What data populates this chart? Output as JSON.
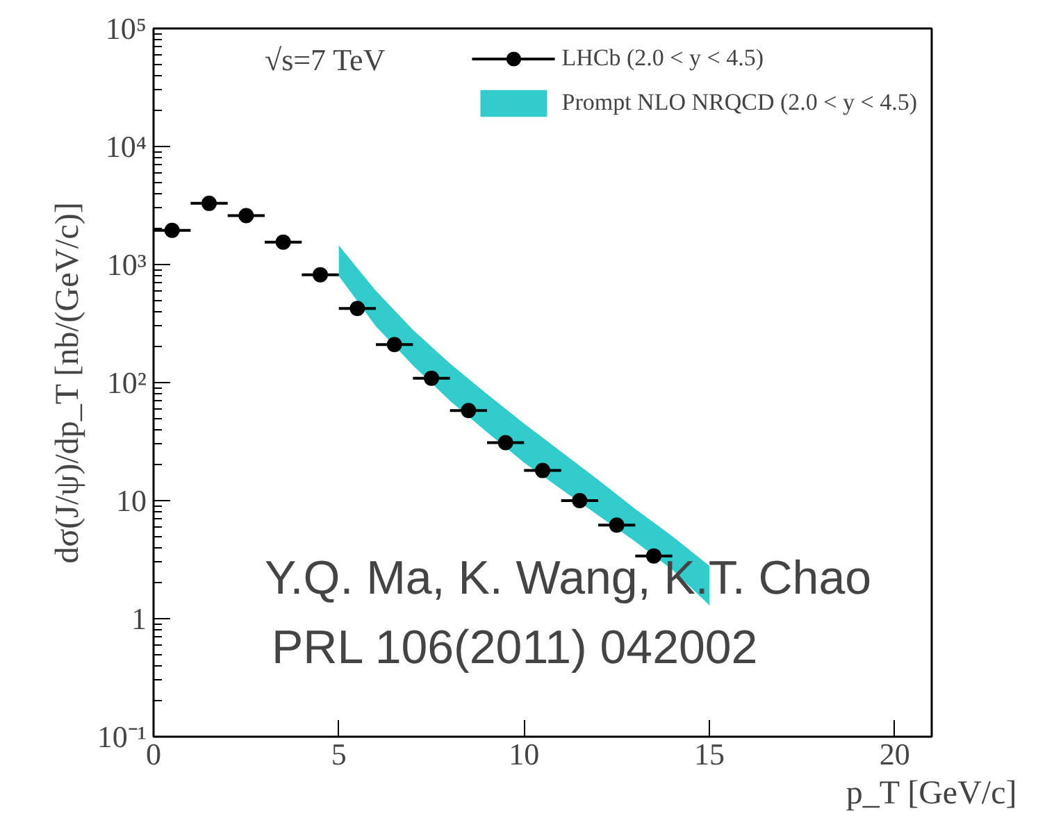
{
  "chart_data": {
    "type": "scatter",
    "xlabel": "p_T [GeV/c]",
    "ylabel": "dσ(J/ψ)/dp_T [nb/(GeV/c)]",
    "log": "y",
    "xlim": [
      0,
      21
    ],
    "xticks": [
      0,
      5,
      10,
      15,
      20
    ],
    "ylim": [
      0.1,
      100000
    ],
    "yticks": [
      {
        "value": 0.1,
        "label": "10⁻¹"
      },
      1,
      10,
      {
        "value": 100,
        "label": "10²"
      },
      {
        "value": 1000,
        "label": "10³"
      },
      {
        "value": 10000,
        "label": "10⁴"
      },
      {
        "value": 100000,
        "label": "10⁵"
      }
    ],
    "grid": false,
    "legend": "top right",
    "series": [
      {
        "name": "LHCb (2.0 < y < 4.5)",
        "marker": "circle",
        "color": "#000000",
        "x": [
          0.5,
          1.5,
          2.5,
          3.5,
          4.5,
          5.5,
          6.5,
          7.5,
          8.5,
          9.5,
          10.5,
          11.5,
          12.5,
          13.5
        ],
        "values": [
          1950,
          3300,
          2600,
          1550,
          820,
          425,
          210,
          109,
          58,
          31,
          18,
          10,
          6.2,
          3.4
        ],
        "xerrors": [
          0.5,
          0.5,
          0.5,
          0.5,
          0.5,
          0.5,
          0.5,
          0.5,
          0.5,
          0.5,
          0.5,
          0.5,
          0.5,
          0.5
        ]
      },
      {
        "name": "Prompt NLO NRQCD (2.0 < y < 4.5)",
        "type": "area",
        "color": "#33cccc",
        "x": [
          5,
          6,
          7,
          8,
          9,
          10,
          11,
          12,
          13,
          14,
          15
        ],
        "values": [
          null,
          null,
          null,
          null,
          null,
          null,
          null,
          null,
          null,
          null,
          null
        ],
        "lower": [
          800,
          300,
          140,
          70,
          38,
          21,
          12.5,
          7.5,
          4.5,
          2.6,
          1.3
        ],
        "upper": [
          1450,
          600,
          280,
          145,
          80,
          45,
          26,
          15,
          8.5,
          5,
          2.8
        ]
      }
    ],
    "annotations": [
      "√s=7 TeV",
      "Y.Q. Ma, K. Wang, K.T. Chao",
      "PRL 106(2011) 042002"
    ]
  }
}
